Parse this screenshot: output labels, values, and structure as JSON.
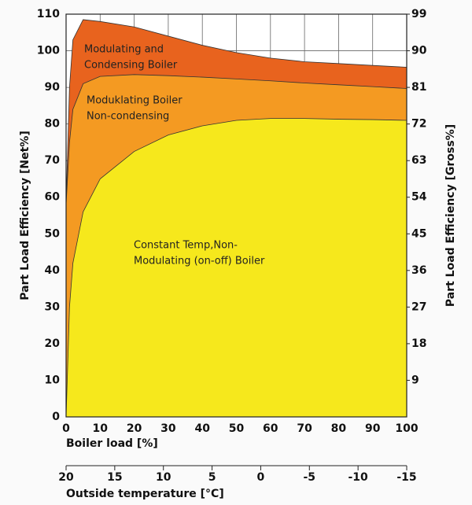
{
  "chart_data": {
    "type": "area",
    "y_label": "Part Load Efficiency [Net%]",
    "y2_label": "Part Load Efficiency [Gross%]",
    "x_label": "Boiler load [%]",
    "x2_label": "Outside temperature [°C]",
    "x": [
      0,
      1,
      2,
      5,
      10,
      20,
      30,
      40,
      50,
      60,
      70,
      80,
      90,
      100
    ],
    "series": [
      {
        "label": [
          "Modulating and",
          "Condensing Boiler"
        ],
        "color": "#e8631e",
        "values": [
          58,
          90,
          103,
          108.5,
          108,
          106.5,
          104,
          101.5,
          99.5,
          98,
          97,
          96.5,
          96,
          95.5
        ]
      },
      {
        "label": [
          "Moduklating Boiler",
          "Non-condensing"
        ],
        "color": "#f49a22",
        "values": [
          58,
          75,
          84,
          91,
          93,
          93.5,
          93.2,
          92.8,
          92.3,
          91.8,
          91.2,
          90.7,
          90.2,
          89.7
        ]
      },
      {
        "label": [
          "Constant Temp,Non-",
          "Modulating (on-off) Boiler"
        ],
        "color": "#f6e81c",
        "values": [
          0,
          30,
          42,
          56,
          65,
          72.5,
          77,
          79.5,
          81,
          81.5,
          81.5,
          81.3,
          81.2,
          81
        ]
      }
    ],
    "xlim": [
      0,
      100
    ],
    "xticks": [
      0,
      10,
      20,
      30,
      40,
      50,
      60,
      70,
      80,
      90,
      100
    ],
    "ylim": [
      0,
      110
    ],
    "yticks": [
      0,
      10,
      20,
      30,
      40,
      50,
      60,
      70,
      80,
      90,
      100,
      110
    ],
    "y2lim": [
      0,
      99
    ],
    "y2ticks": [
      9,
      18,
      27,
      36,
      45,
      54,
      63,
      72,
      81,
      90,
      99
    ],
    "x2lim": [
      20,
      -15
    ],
    "x2ticks": [
      20,
      15,
      10,
      5,
      0,
      -5,
      -10,
      -15
    ],
    "grid": true
  }
}
